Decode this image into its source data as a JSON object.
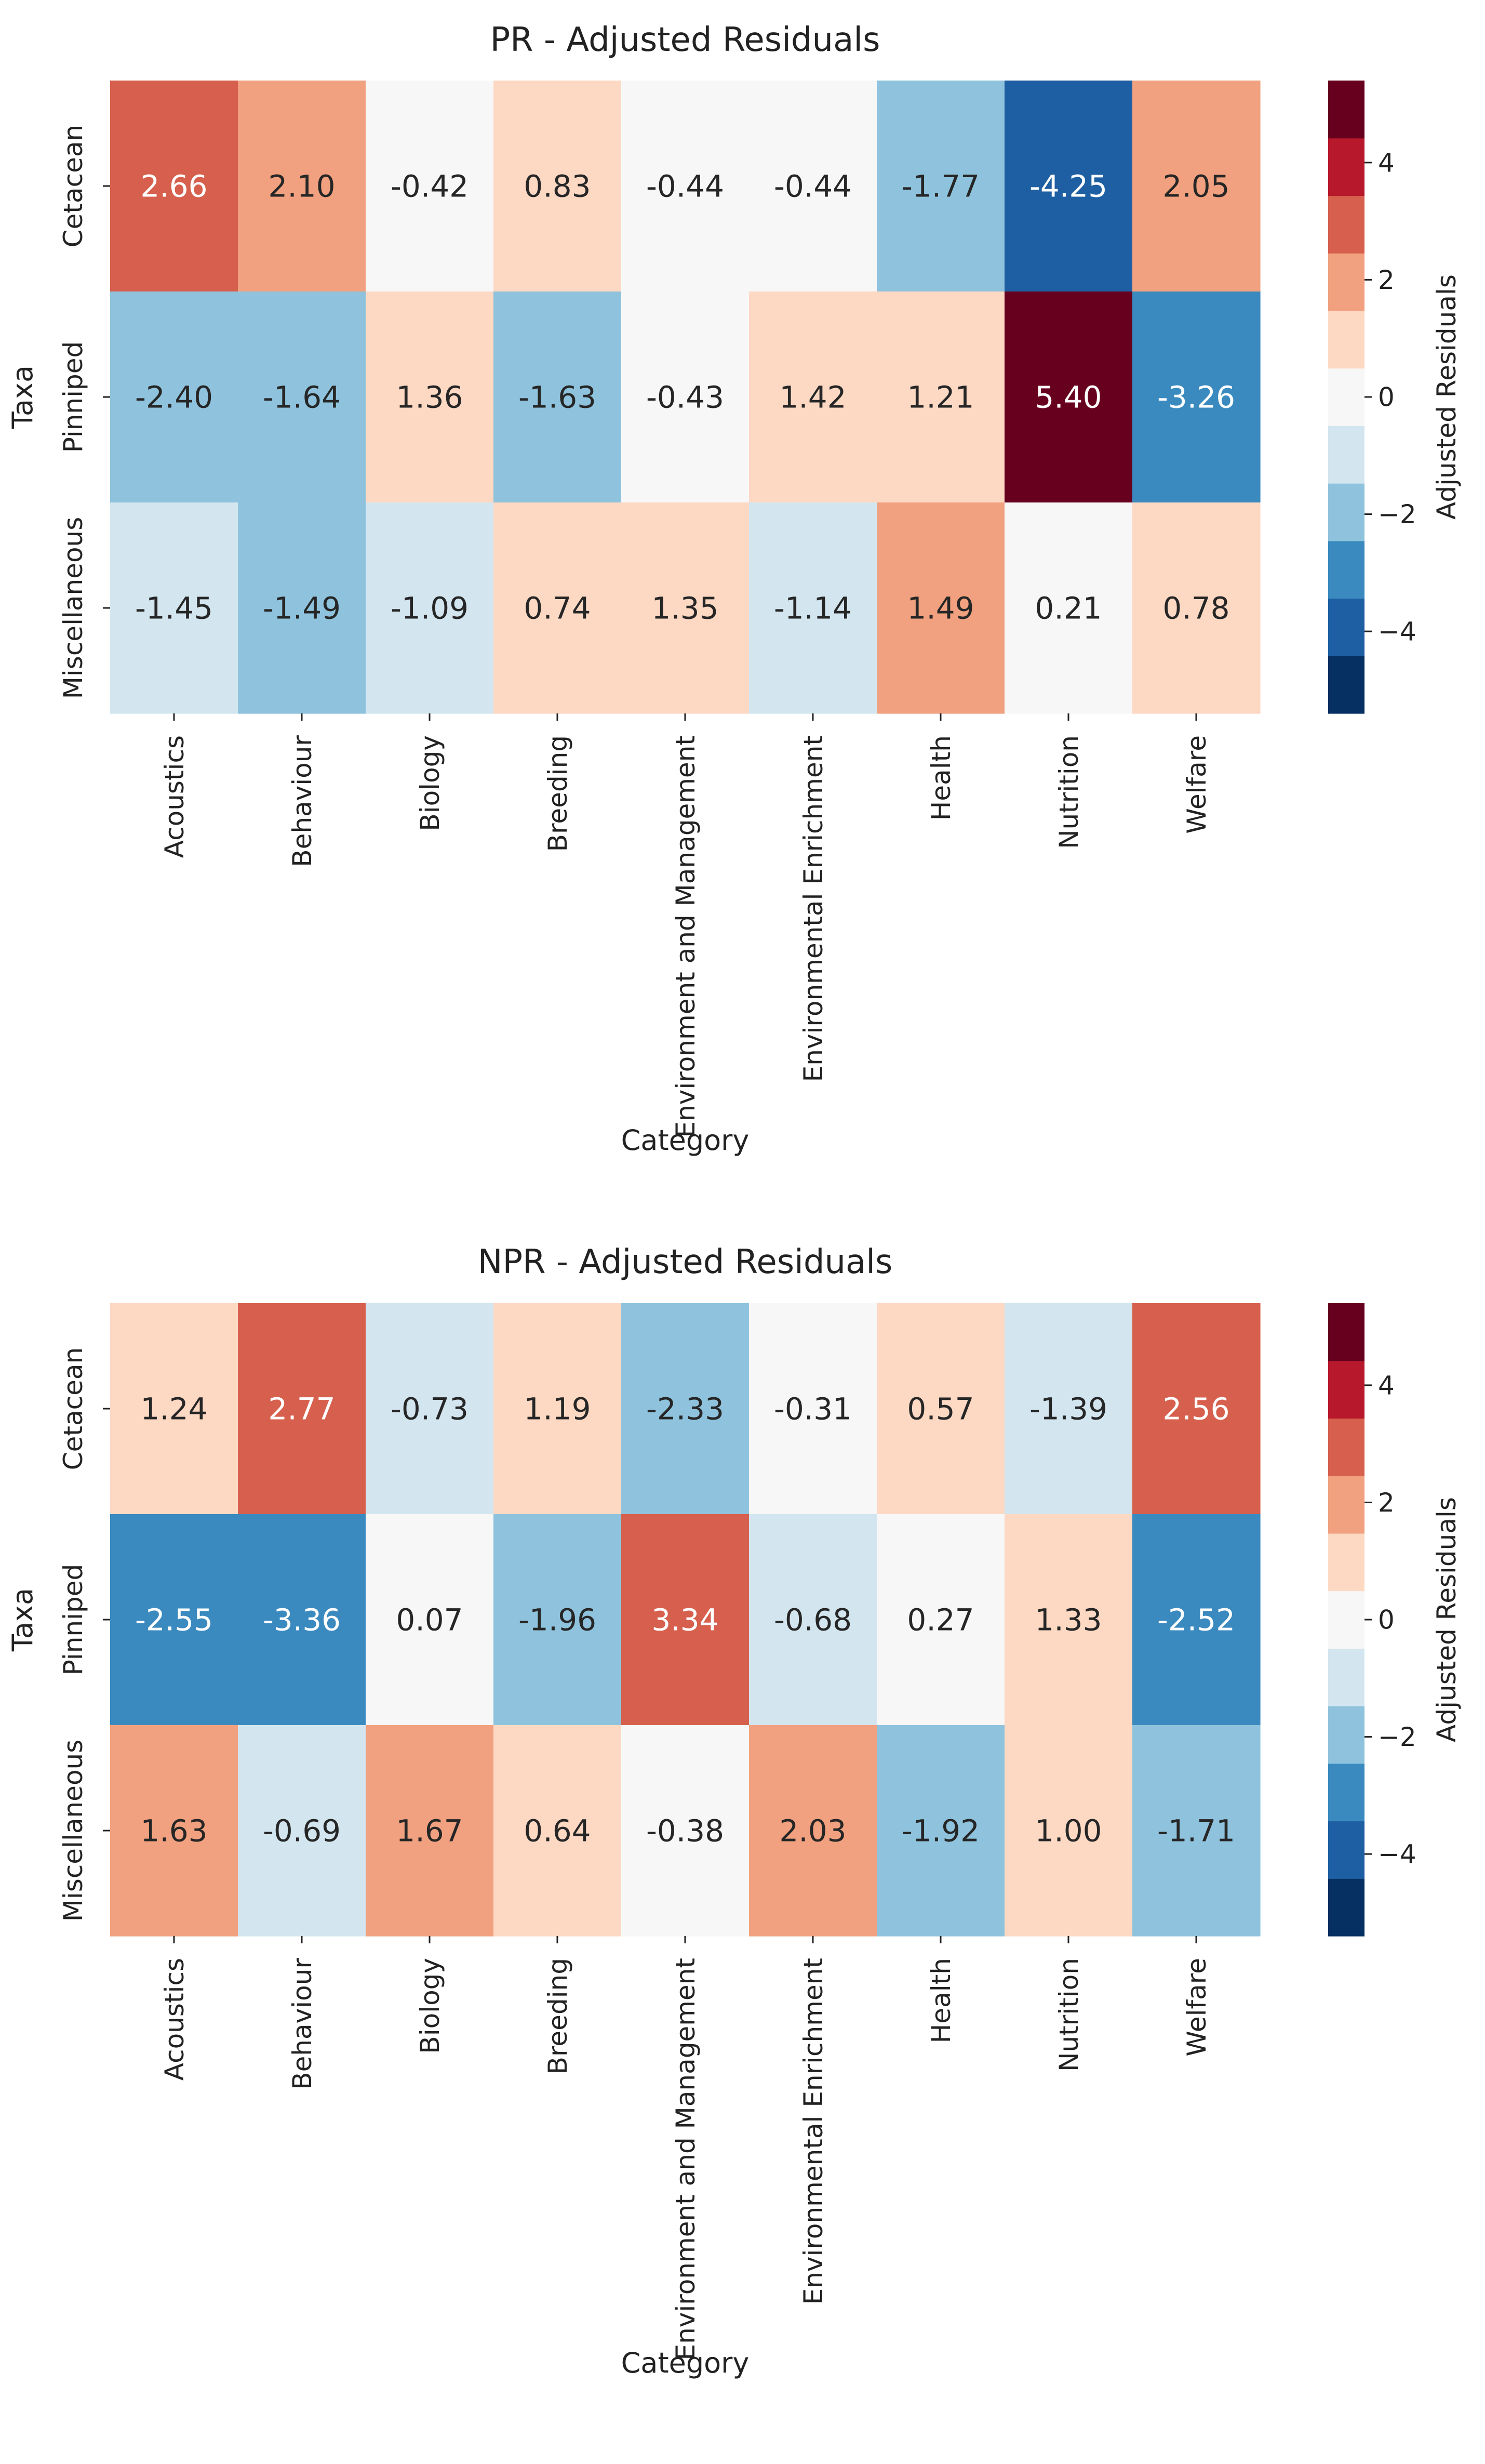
{
  "chart_data": [
    {
      "type": "heatmap",
      "title": "PR  - Adjusted Residuals",
      "xlabel": "Category",
      "ylabel": "Taxa",
      "categories": [
        "Acoustics",
        "Behaviour",
        "Biology",
        "Breeding",
        "Environment and Management",
        "Environmental Enrichment",
        "Health",
        "Nutrition",
        "Welfare"
      ],
      "rows": [
        "Cetacean",
        "Pinniped",
        "Miscellaneous"
      ],
      "values": [
        [
          2.66,
          2.1,
          -0.42,
          0.83,
          -0.44,
          -0.44,
          -1.77,
          -4.25,
          2.05
        ],
        [
          -2.4,
          -1.64,
          1.36,
          -1.63,
          -0.43,
          1.42,
          1.21,
          5.4,
          -3.26
        ],
        [
          -1.45,
          -1.49,
          -1.09,
          0.74,
          1.35,
          -1.14,
          1.49,
          0.21,
          0.78
        ]
      ],
      "colorbar": {
        "label": "Adjusted Residuals",
        "range": [
          -5.4,
          5.4
        ],
        "ticks": [
          4,
          2,
          0,
          -2,
          -4
        ],
        "tick_labels": [
          "4",
          "2",
          "0",
          "−2",
          "−4"
        ]
      }
    },
    {
      "type": "heatmap",
      "title": "NPR  - Adjusted Residuals",
      "xlabel": "Category",
      "ylabel": "Taxa",
      "categories": [
        "Acoustics",
        "Behaviour",
        "Biology",
        "Breeding",
        "Environment and Management",
        "Environmental Enrichment",
        "Health",
        "Nutrition",
        "Welfare"
      ],
      "rows": [
        "Cetacean",
        "Pinniped",
        "Miscellaneous"
      ],
      "values": [
        [
          1.24,
          2.77,
          -0.73,
          1.19,
          -2.33,
          -0.31,
          0.57,
          -1.39,
          2.56
        ],
        [
          -2.55,
          -3.36,
          0.07,
          -1.96,
          3.34,
          -0.68,
          0.27,
          1.33,
          -2.52
        ],
        [
          1.63,
          -0.69,
          1.67,
          0.64,
          -0.38,
          2.03,
          -1.92,
          1.0,
          -1.71
        ]
      ],
      "colorbar": {
        "label": "Adjusted Residuals",
        "range": [
          -5.4,
          5.4
        ],
        "ticks": [
          4,
          2,
          0,
          -2,
          -4
        ],
        "tick_labels": [
          "4",
          "2",
          "0",
          "−2",
          "−4"
        ]
      }
    }
  ],
  "colormap": {
    "name": "RdBu_r",
    "bins": 11,
    "colors": [
      "#053061",
      "#1d5fa2",
      "#3a8ac0",
      "#8fc3dd",
      "#d3e6f0",
      "#f7f7f7",
      "#fdd9c4",
      "#f1a17f",
      "#d6604d",
      "#b7182b",
      "#67001f"
    ],
    "light_text": "#ffffff",
    "dark_text": "#262626"
  }
}
